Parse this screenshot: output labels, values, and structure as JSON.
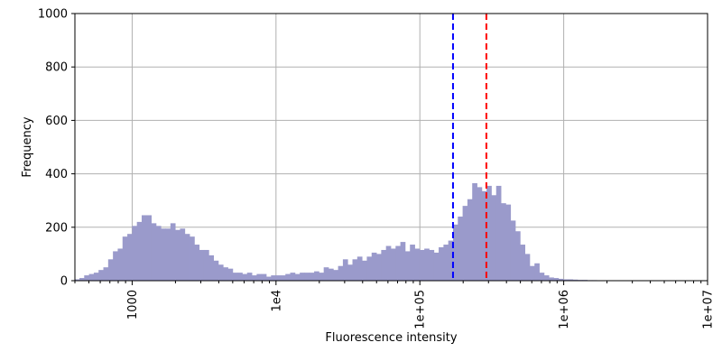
{
  "chart_data": {
    "type": "bar",
    "title": "",
    "xlabel": "Fluorescence intensity",
    "ylabel": "Frequency",
    "xscale": "log",
    "xlim": [
      400,
      10000000
    ],
    "ylim": [
      0,
      1000
    ],
    "grid": true,
    "bar_color": "#9a9acb",
    "x_ticks": [
      {
        "value": 1000,
        "label": "1000"
      },
      {
        "value": 10000,
        "label": "1e4"
      },
      {
        "value": 100000,
        "label": "1e+05"
      },
      {
        "value": 1000000,
        "label": "1e+06"
      },
      {
        "value": 10000000,
        "label": "1e+07"
      }
    ],
    "y_ticks": [
      {
        "value": 0,
        "label": "0"
      },
      {
        "value": 200,
        "label": "200"
      },
      {
        "value": 400,
        "label": "400"
      },
      {
        "value": 600,
        "label": "600"
      },
      {
        "value": 800,
        "label": "800"
      },
      {
        "value": 1000,
        "label": "1000"
      }
    ],
    "reference_lines": [
      {
        "x": 170000,
        "color": "#0000ff",
        "style": "dashed"
      },
      {
        "x": 290000,
        "color": "#ff0000",
        "style": "dashed"
      }
    ],
    "bins": {
      "log10_start": 2.6,
      "log10_width": 0.0333,
      "counts": [
        5,
        10,
        20,
        25,
        30,
        40,
        50,
        80,
        110,
        120,
        165,
        175,
        205,
        220,
        245,
        245,
        215,
        205,
        195,
        195,
        215,
        190,
        195,
        175,
        165,
        135,
        115,
        115,
        95,
        75,
        60,
        50,
        45,
        30,
        30,
        25,
        30,
        20,
        25,
        25,
        15,
        20,
        20,
        20,
        25,
        30,
        25,
        30,
        30,
        30,
        35,
        30,
        50,
        45,
        40,
        55,
        80,
        60,
        80,
        90,
        75,
        90,
        105,
        100,
        115,
        130,
        120,
        130,
        145,
        110,
        135,
        120,
        115,
        120,
        115,
        105,
        125,
        135,
        150,
        210,
        240,
        280,
        305,
        365,
        350,
        335,
        355,
        320,
        355,
        290,
        285,
        225,
        185,
        135,
        100,
        55,
        65,
        30,
        20,
        12,
        10,
        7,
        5,
        5,
        4,
        3,
        3,
        2,
        2,
        1,
        1,
        1,
        1,
        1,
        1,
        1,
        1,
        1,
        1,
        1,
        1,
        1,
        1
      ]
    }
  }
}
